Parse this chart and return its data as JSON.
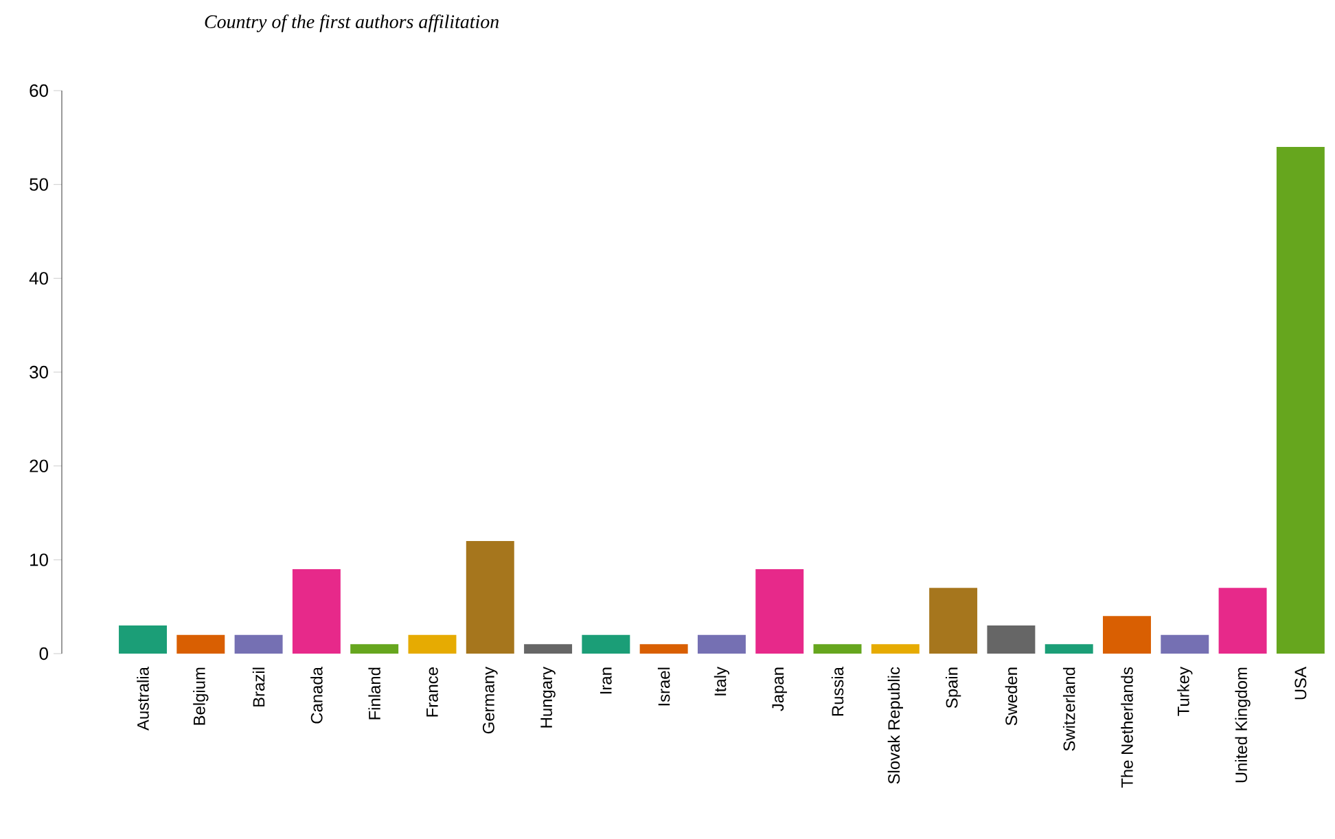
{
  "chart_data": {
    "type": "bar",
    "title": "Country of the first authors affilitation",
    "categories": [
      "Australia",
      "Belgium",
      "Brazil",
      "Canada",
      "Finland",
      "France",
      "Germany",
      "Hungary",
      "Iran",
      "Israel",
      "Italy",
      "Japan",
      "Russia",
      "Slovak Republic",
      "Spain",
      "Sweden",
      "Switzerland",
      "The Netherlands",
      "Turkey",
      "United Kingdom",
      "USA"
    ],
    "values": [
      3,
      2,
      2,
      9,
      1,
      2,
      12,
      1,
      2,
      1,
      2,
      9,
      1,
      1,
      7,
      3,
      1,
      4,
      2,
      7,
      54
    ],
    "colors": [
      "#1b9e77",
      "#d95f02",
      "#7570b3",
      "#e7298a",
      "#66a61e",
      "#e6ab02",
      "#a6761d",
      "#666666",
      "#1b9e77",
      "#d95f02",
      "#7570b3",
      "#e7298a",
      "#66a61e",
      "#e6ab02",
      "#a6761d",
      "#666666",
      "#1b9e77",
      "#d95f02",
      "#7570b3",
      "#e7298a",
      "#66a61e"
    ],
    "ylim": [
      0,
      60
    ],
    "yticks": [
      0,
      10,
      20,
      30,
      40,
      50,
      60
    ],
    "grid": false
  }
}
